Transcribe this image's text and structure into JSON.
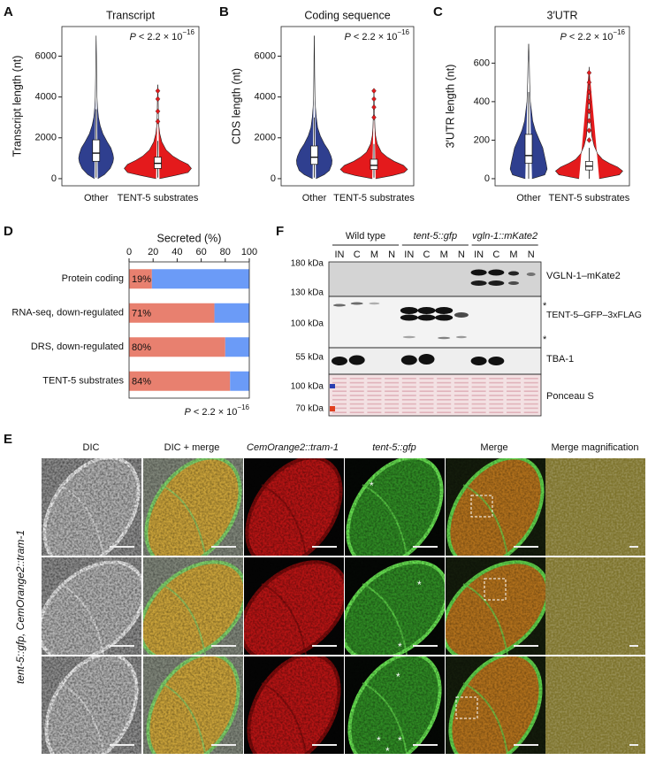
{
  "panel_letters": [
    "A",
    "B",
    "C",
    "D",
    "E",
    "F"
  ],
  "chart_data": [
    {
      "type": "violin",
      "title": "Transcript",
      "ylabel": "Transcript length (nt)",
      "annotation": [
        "P",
        " < 2.2 × 10",
        "−16"
      ],
      "categories": [
        "Other",
        "TENT-5 substrates"
      ],
      "series": [
        {
          "color": "#2f3f8f",
          "density_y": [
            0,
            200,
            500,
            800,
            1000,
            1200,
            1500,
            1800,
            2200,
            2600,
            3000,
            3500,
            4000,
            5000,
            6000,
            7000
          ],
          "density": [
            0.05,
            0.25,
            0.42,
            0.5,
            0.52,
            0.5,
            0.44,
            0.33,
            0.2,
            0.12,
            0.07,
            0.04,
            0.025,
            0.015,
            0.01,
            0
          ],
          "q1": 850,
          "median": 1250,
          "q3": 1900,
          "whisker_low": 50,
          "whisker_high": 3400,
          "outliers": []
        },
        {
          "color": "#e41a1c",
          "density_y": [
            0,
            150,
            300,
            500,
            700,
            900,
            1100,
            1400,
            1800,
            2200,
            2600,
            3000,
            3500,
            4000,
            4600
          ],
          "density": [
            0.05,
            0.5,
            0.9,
            1.0,
            0.9,
            0.65,
            0.45,
            0.25,
            0.12,
            0.06,
            0.03,
            0.02,
            0.015,
            0.01,
            0
          ],
          "q1": 500,
          "median": 750,
          "q3": 1050,
          "whisker_low": 50,
          "whisker_high": 1850,
          "outliers": [
            2800,
            3300,
            3900,
            4300
          ]
        }
      ],
      "ylim": [
        -350,
        7450
      ],
      "yticks": [
        0,
        2000,
        4000,
        6000
      ]
    },
    {
      "type": "violin",
      "title": "Coding sequence",
      "ylabel": "CDS length (nt)",
      "annotation": [
        "P",
        " < 2.2 × 10",
        "−16"
      ],
      "categories": [
        "Other",
        "TENT-5 substrates"
      ],
      "series": [
        {
          "color": "#2f3f8f",
          "density_y": [
            0,
            200,
            400,
            700,
            900,
            1100,
            1400,
            1700,
            2100,
            2500,
            3000,
            3500,
            4000,
            5000,
            6000,
            7000
          ],
          "density": [
            0.05,
            0.3,
            0.45,
            0.52,
            0.53,
            0.5,
            0.42,
            0.3,
            0.18,
            0.1,
            0.06,
            0.035,
            0.02,
            0.012,
            0.008,
            0
          ],
          "q1": 700,
          "median": 1050,
          "q3": 1600,
          "whisker_low": 50,
          "whisker_high": 3000,
          "outliers": []
        },
        {
          "color": "#e41a1c",
          "density_y": [
            0,
            150,
            300,
            450,
            650,
            850,
            1050,
            1300,
            1700,
            2100,
            2500,
            3000,
            3500,
            4300
          ],
          "density": [
            0.05,
            0.55,
            0.9,
            1.0,
            0.88,
            0.6,
            0.4,
            0.22,
            0.1,
            0.05,
            0.03,
            0.02,
            0.012,
            0
          ],
          "q1": 450,
          "median": 650,
          "q3": 950,
          "whisker_low": 50,
          "whisker_high": 1700,
          "outliers": [
            3000,
            3500,
            3900,
            4300
          ]
        }
      ],
      "ylim": [
        -350,
        7450
      ],
      "yticks": [
        0,
        2000,
        4000,
        6000
      ]
    },
    {
      "type": "violin",
      "title": "3′UTR",
      "ylabel": "3′UTR length (nt)",
      "annotation": [
        "P",
        " < 2.2 × 10",
        "−16"
      ],
      "categories": [
        "Other",
        "TENT-5 substrates"
      ],
      "series": [
        {
          "color": "#2f3f8f",
          "density_y": [
            0,
            20,
            50,
            80,
            120,
            160,
            200,
            250,
            300,
            400,
            500,
            600,
            700
          ],
          "density": [
            0.1,
            0.48,
            0.55,
            0.52,
            0.47,
            0.42,
            0.32,
            0.2,
            0.12,
            0.05,
            0.03,
            0.02,
            0
          ],
          "q1": 80,
          "median": 120,
          "q3": 230,
          "whisker_low": 0,
          "whisker_high": 450,
          "outliers": []
        },
        {
          "color": "#e41a1c",
          "density_y": [
            0,
            20,
            40,
            60,
            80,
            100,
            130,
            170,
            220,
            300,
            400,
            500,
            580
          ],
          "density": [
            0.3,
            0.9,
            1.0,
            0.85,
            0.6,
            0.4,
            0.25,
            0.15,
            0.08,
            0.04,
            0.02,
            0.01,
            0
          ],
          "q1": 45,
          "median": 65,
          "q3": 90,
          "whisker_low": 0,
          "whisker_high": 160,
          "outliers": [
            200,
            250,
            300,
            350,
            400,
            450,
            500,
            550
          ]
        }
      ],
      "ylim": [
        -37,
        790
      ],
      "yticks": [
        0,
        200,
        400,
        600
      ]
    },
    {
      "type": "bar",
      "orientation": "horizontal",
      "stacked": true,
      "title": "Secreted (%)",
      "annotation": [
        "P",
        " < 2.2 × 10",
        "−16"
      ],
      "categories": [
        "Protein coding",
        "RNA-seq, down-regulated",
        "DRS, down-regulated",
        "TENT-5 substrates"
      ],
      "series": [
        {
          "color": "#e8806f",
          "values": [
            19,
            71,
            80,
            84
          ],
          "value_labels": [
            "19%",
            "71%",
            "80%",
            "84%"
          ]
        },
        {
          "color": "#6b9bf7",
          "values": [
            81,
            29,
            20,
            16
          ]
        }
      ],
      "xlim": [
        0,
        100
      ],
      "xticks": [
        0,
        20,
        40,
        60,
        80,
        100
      ]
    }
  ],
  "blot": {
    "groups": [
      {
        "label": "Wild type",
        "lanes": [
          "IN",
          "C",
          "M",
          "N"
        ]
      },
      {
        "label": "tent-5::gfp",
        "lanes": [
          "IN",
          "C",
          "M",
          "N"
        ]
      },
      {
        "label": "vgln-1::mKate2",
        "lanes": [
          "IN",
          "C",
          "M",
          "N"
        ]
      }
    ],
    "markers": [
      "180 kDa",
      "130 kDa",
      "100 kDa",
      "55 kDa",
      "100 kDa",
      "70 kDa"
    ],
    "rows": [
      "VGLN-1–mKate2",
      "TENT-5–GFP–3xFLAG",
      "TBA-1",
      "Ponceau S"
    ],
    "asterisk": "*"
  },
  "microscopy": {
    "columns": [
      "DIC",
      "DIC + merge",
      "CemOrange2::tram-1",
      "tent-5::gfp",
      "Merge",
      "Merge magnification"
    ],
    "row_label": "tent-5::gfp, CemOrange2::tram-1",
    "asterisk": "*"
  }
}
